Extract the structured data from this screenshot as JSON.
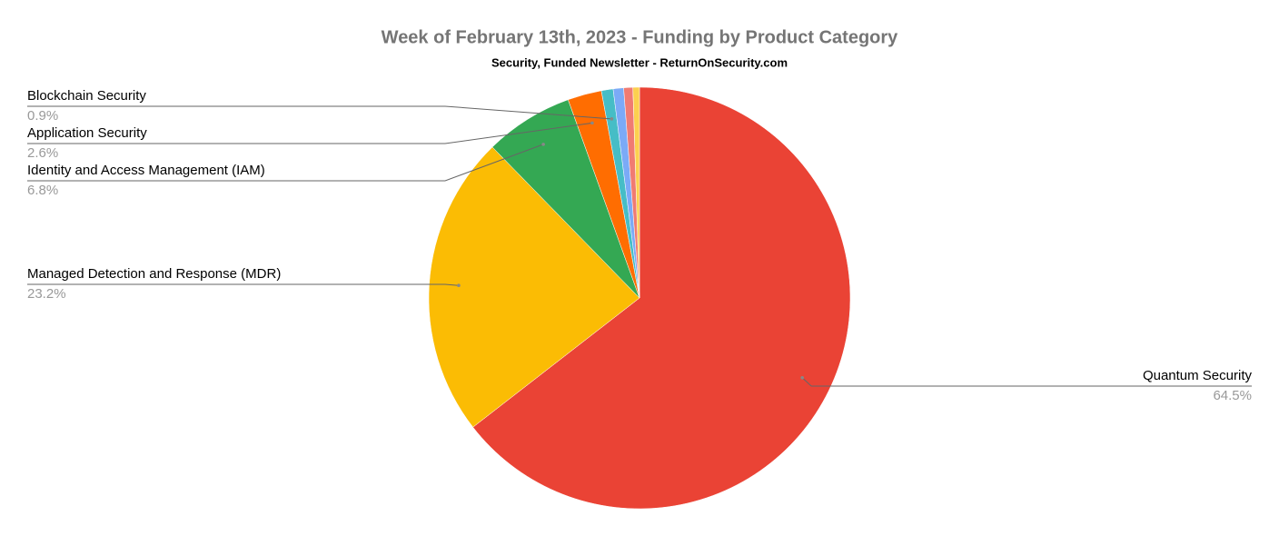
{
  "chart_data": {
    "type": "pie",
    "title": "Week of February 13th, 2023 - Funding by Product Category",
    "subtitle": "Security, Funded Newsletter - ReturnOnSecurity.com",
    "categories": [
      "Quantum Security",
      "Managed Detection and Response (MDR)",
      "Identity and Access Management (IAM)",
      "Application Security",
      "Blockchain Security",
      null,
      null,
      null
    ],
    "values": [
      64.5,
      23.2,
      6.8,
      2.6,
      0.9,
      0.8,
      0.7,
      0.5
    ],
    "value_labels": [
      "64.5%",
      "23.2%",
      "6.8%",
      "2.6%",
      "0.9%",
      null,
      null,
      null
    ],
    "colors": [
      "#ea4335",
      "#fbbc04",
      "#34a853",
      "#ff6d01",
      "#46bdc6",
      "#7baaf7",
      "#f07b72",
      "#fcd04f"
    ]
  }
}
